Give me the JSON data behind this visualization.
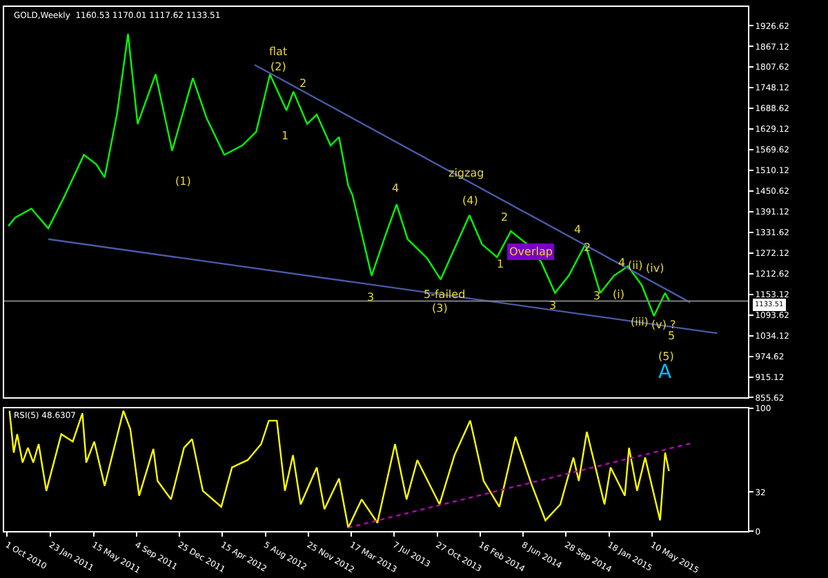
{
  "chart_data": [
    {
      "type": "line",
      "title": "GOLD,Weekly  1160.53 1170.01 1117.62 1133.51",
      "x": [
        "2010-10-05",
        "2010-10-23",
        "2010-12-04",
        "2011-01-17",
        "2011-02-25",
        "2011-04-20",
        "2011-05-22",
        "2011-06-13",
        "2011-07-15",
        "2011-08-13",
        "2011-09-07",
        "2011-10-24",
        "2011-12-06",
        "2012-01-29",
        "2012-03-05",
        "2012-04-20",
        "2012-06-06",
        "2012-07-12",
        "2012-08-17",
        "2012-09-29",
        "2012-10-17",
        "2012-11-22",
        "2012-12-17",
        "2013-01-22",
        "2013-02-13",
        "2013-03-09",
        "2013-03-20",
        "2013-05-09",
        "2013-06-14",
        "2013-07-13",
        "2013-08-11",
        "2013-09-05",
        "2013-09-30",
        "2013-11-05",
        "2013-12-22",
        "2014-01-19",
        "2014-02-21",
        "2014-04-01",
        "2014-05-07",
        "2014-06-19",
        "2014-07-25",
        "2014-08-30",
        "2014-10-05",
        "2014-11-17",
        "2014-12-26",
        "2015-01-31",
        "2015-03-08",
        "2015-04-13",
        "2015-05-15",
        "2015-06-13",
        "2015-06-24"
      ],
      "series": [
        {
          "color": "#00ff00",
          "values": [
            1350,
            1374,
            1400,
            1343,
            1428,
            1555,
            1528,
            1490,
            1671,
            1903,
            1644,
            1787,
            1567,
            1776,
            1660,
            1555,
            1582,
            1621,
            1787,
            1683,
            1737,
            1644,
            1671,
            1582,
            1606,
            1466,
            1439,
            1207,
            1323,
            1412,
            1312,
            1285,
            1258,
            1196,
            1312,
            1381,
            1297,
            1260,
            1335,
            1297,
            1246,
            1157,
            1207,
            1297,
            1157,
            1207,
            1234,
            1180,
            1091,
            1157,
            1134
          ]
        },
        {
          "type": "line",
          "color": "#4a5aa8",
          "x": [
            "2012-07-08",
            "2015-08-17"
          ],
          "values": [
            1814,
            1130
          ]
        },
        {
          "type": "line",
          "color": "#4a5aa8",
          "x": [
            "2011-01-17",
            "2015-10-27"
          ],
          "values": [
            1312,
            1041
          ]
        }
      ],
      "xlim": [
        "2010-09-24",
        "2016-01-15"
      ],
      "ylim": [
        855.62,
        1981
      ],
      "yticks": [
        1926.62,
        1867.12,
        1807.62,
        1748.12,
        1688.62,
        1629.12,
        1569.62,
        1510.12,
        1450.62,
        1391.12,
        1331.62,
        1272.12,
        1212.62,
        1153.12,
        1093.62,
        1034.12,
        974.62,
        915.12,
        855.62
      ],
      "tick_labels": "y",
      "ref_lines": [
        {
          "axis": "y",
          "value": 1133.51,
          "label": "1133.51",
          "color": "#808080"
        }
      ],
      "annotations": [
        "flat",
        "(2)",
        "2",
        "1",
        "(1)",
        "4",
        "3",
        "zigzag",
        "(4)",
        "5-failed",
        "(3)",
        "2",
        "1",
        "Overlap",
        "3",
        "4",
        "2",
        "3",
        "4",
        "(i)",
        "(ii)",
        "(iii)",
        "(iv)",
        "(v) ?",
        "5",
        "(5)",
        "A"
      ],
      "grid": false,
      "marker": "none",
      "line_style": "solid"
    },
    {
      "type": "line",
      "title": "RSI(5) 48.6307",
      "x": [
        "2010-10-08",
        "2010-10-19",
        "2010-10-28",
        "2010-11-11",
        "2010-11-25",
        "2010-12-09",
        "2010-12-23",
        "2011-01-12",
        "2011-02-20",
        "2011-03-22",
        "2011-04-16",
        "2011-04-26",
        "2011-05-17",
        "2011-06-13",
        "2011-08-01",
        "2011-08-19",
        "2011-09-11",
        "2011-10-18",
        "2011-10-29",
        "2011-12-03",
        "2012-01-06",
        "2012-01-27",
        "2012-02-24",
        "2012-04-12",
        "2012-05-10",
        "2012-06-20",
        "2012-07-25",
        "2012-08-14",
        "2012-09-04",
        "2012-09-25",
        "2012-10-16",
        "2012-11-05",
        "2012-12-17",
        "2013-01-06",
        "2013-02-13",
        "2013-03-09",
        "2013-04-13",
        "2013-05-24",
        "2013-07-09",
        "2013-08-08",
        "2013-09-05",
        "2013-11-02",
        "2013-12-11",
        "2014-01-21",
        "2014-02-25",
        "2014-04-07",
        "2014-05-19",
        "2014-06-29",
        "2014-08-05",
        "2014-09-13",
        "2014-10-17",
        "2014-10-31",
        "2014-11-21",
        "2015-01-06",
        "2015-01-22",
        "2015-02-28",
        "2015-03-11",
        "2015-04-01",
        "2015-04-22",
        "2015-05-31",
        "2015-06-13",
        "2015-06-23"
      ],
      "series": [
        {
          "color": "#ffff00",
          "values": [
            98,
            64,
            79,
            56,
            68,
            56,
            71,
            33,
            79,
            73,
            96,
            56,
            73,
            37,
            98,
            83,
            29,
            67,
            41,
            26,
            68,
            75,
            33,
            20,
            52,
            58,
            71,
            90,
            90,
            33,
            62,
            22,
            52,
            18,
            43,
            3,
            26,
            7,
            71,
            26,
            58,
            22,
            62,
            90,
            41,
            20,
            77,
            39,
            9,
            22,
            60,
            41,
            81,
            22,
            52,
            29,
            68,
            33,
            60,
            9,
            64,
            49
          ]
        },
        {
          "type": "line",
          "color": "#c000c0",
          "line_style": "dotted",
          "x": [
            "2013-03-09",
            "2015-08-24"
          ],
          "values": [
            3,
            72
          ]
        }
      ],
      "xlim": [
        "2010-09-24",
        "2016-01-15"
      ],
      "xticks": [
        {
          "value": "2010-10-01",
          "label": "1 Oct 2010"
        },
        {
          "value": "2011-01-23",
          "label": "23 Jan 2011"
        },
        {
          "value": "2011-05-15",
          "label": "15 May 2011"
        },
        {
          "value": "2011-09-04",
          "label": "4 Sep 2011"
        },
        {
          "value": "2011-12-25",
          "label": "25 Dec 2011"
        },
        {
          "value": "2012-04-15",
          "label": "15 Apr 2012"
        },
        {
          "value": "2012-08-05",
          "label": "5 Aug 2012"
        },
        {
          "value": "2012-11-25",
          "label": "25 Nov 2012"
        },
        {
          "value": "2013-03-17",
          "label": "17 Mar 2013"
        },
        {
          "value": "2013-07-07",
          "label": "7 Jul 2013"
        },
        {
          "value": "2013-10-27",
          "label": "27 Oct 2013"
        },
        {
          "value": "2014-02-16",
          "label": "16 Feb 2014"
        },
        {
          "value": "2014-06-08",
          "label": "8 Jun 2014"
        },
        {
          "value": "2014-09-28",
          "label": "28 Sep 2014"
        },
        {
          "value": "2015-01-18",
          "label": "18 Jan 2015"
        },
        {
          "value": "2015-05-10",
          "label": "10 May 2015"
        }
      ],
      "ylim": [
        0,
        100
      ],
      "yticks": [
        100,
        32,
        0
      ],
      "grid": false,
      "marker": "none",
      "line_style": "solid"
    }
  ]
}
